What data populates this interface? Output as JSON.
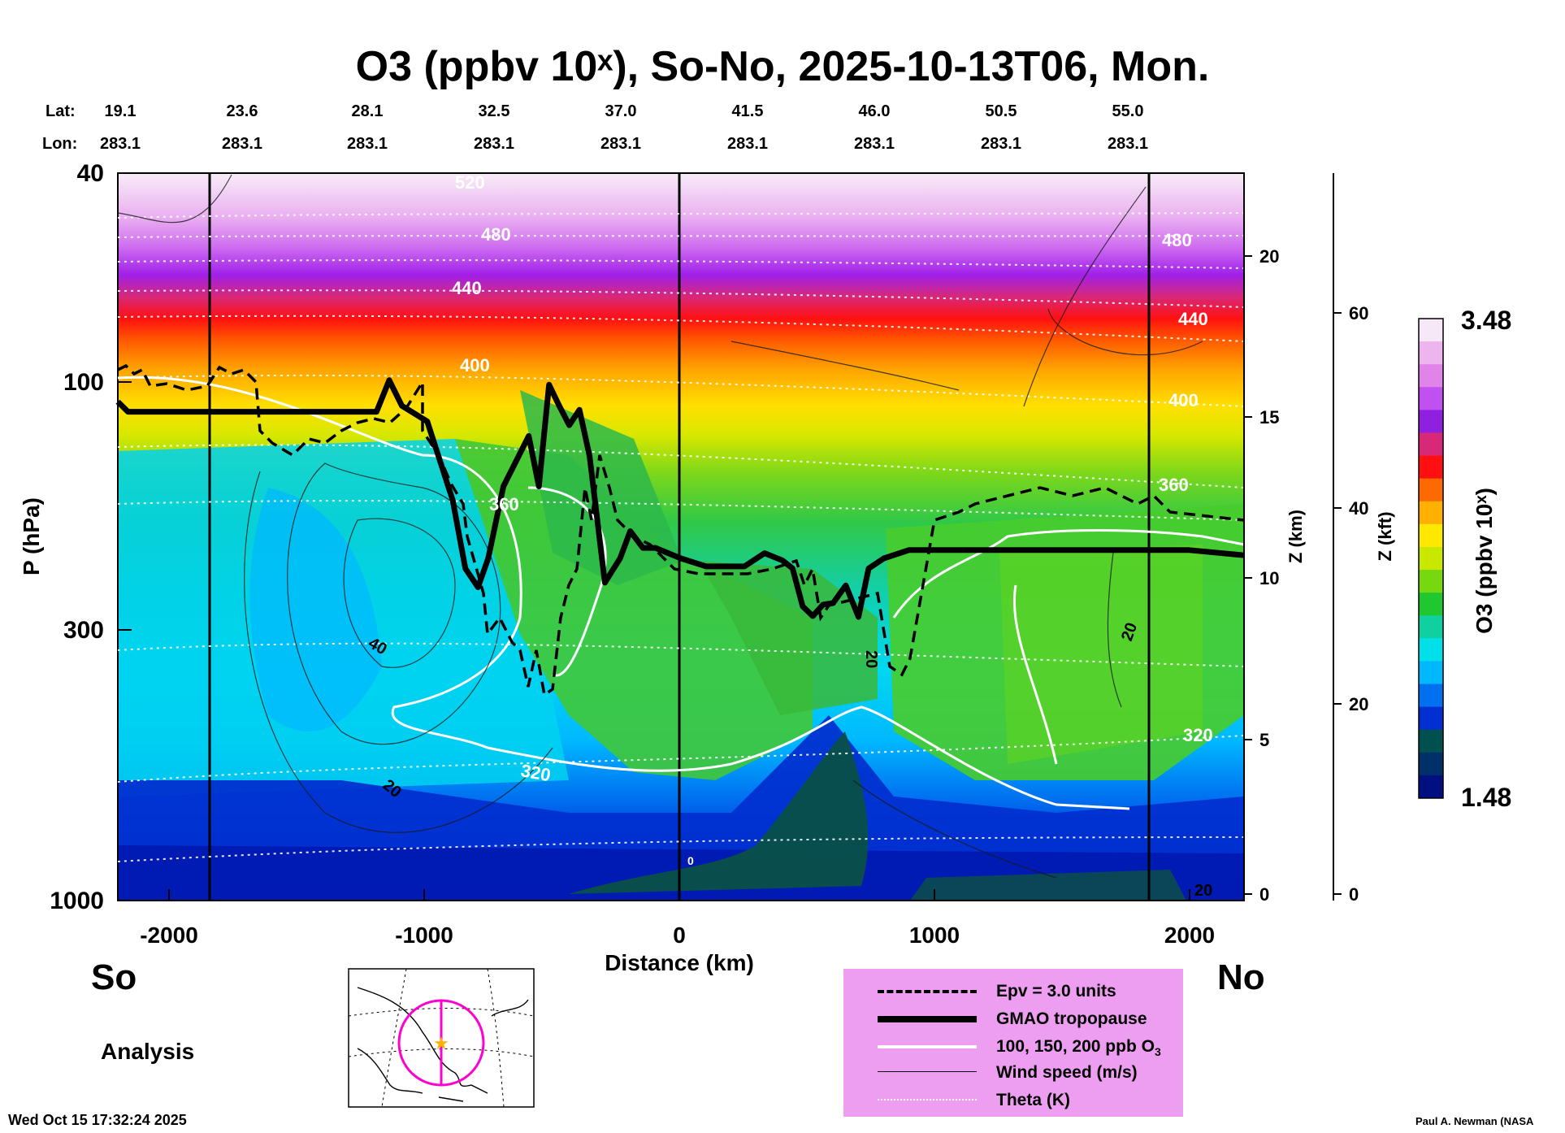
{
  "title": "O3 (ppbv 10ˣ), So-No, 2025-10-13T06, Mon.",
  "header": {
    "lat_label": "Lat:",
    "lon_label": "Lon:",
    "lat_values": [
      "19.1",
      "23.6",
      "28.1",
      "32.5",
      "37.0",
      "41.5",
      "46.0",
      "50.5",
      "55.0"
    ],
    "lon_values": [
      "283.1",
      "283.1",
      "283.1",
      "283.1",
      "283.1",
      "283.1",
      "283.1",
      "283.1",
      "283.1"
    ]
  },
  "axes": {
    "y_label": "P (hPa)",
    "y_ticks": [
      "40",
      "100",
      "300",
      "1000"
    ],
    "x_label": "Distance (km)",
    "x_ticks": [
      "-2000",
      "-1000",
      "0",
      "1000",
      "2000"
    ],
    "z_km_label": "Z (km)",
    "z_km_ticks": [
      "20",
      "15",
      "10",
      "5",
      "0"
    ],
    "z_kft_label": "Z (kft)",
    "z_kft_ticks": [
      "60",
      "40",
      "20",
      "0"
    ]
  },
  "colorbar": {
    "label": "O3 (ppbv 10ˣ)",
    "max": "3.48",
    "min": "1.48",
    "colors": [
      "#f6e8f6",
      "#eeb4ee",
      "#e084ea",
      "#c050f0",
      "#9020e0",
      "#d82878",
      "#ff1010",
      "#ff6a00",
      "#ffb000",
      "#ffe800",
      "#c8e800",
      "#78d810",
      "#20c830",
      "#10d0a0",
      "#00e0e8",
      "#00b8ff",
      "#0070f0",
      "#0030d0",
      "#005050",
      "#00306a",
      "#001080"
    ]
  },
  "contour_labels": {
    "theta": [
      "520",
      "480",
      "440",
      "400",
      "360",
      "320",
      "440",
      "400",
      "360",
      "320",
      "480"
    ],
    "wind": [
      "40",
      "20",
      "20",
      "20",
      "20",
      "0"
    ],
    "o3_inline": [
      "20"
    ]
  },
  "side_labels": {
    "south": "So",
    "north": "No",
    "analysis": "Analysis"
  },
  "legend": {
    "items": [
      {
        "label": "Epv = 3.0 units",
        "style": "dashed-black"
      },
      {
        "label": "GMAO tropopause",
        "style": "thick-black"
      },
      {
        "label": "100, 150, 200 ppb O",
        "sub": "3",
        "style": "white"
      },
      {
        "label": "Wind speed (m/s)",
        "style": "thin-black"
      },
      {
        "label": "Theta (K)",
        "style": "dotted-white"
      }
    ]
  },
  "footer": {
    "timestamp": "Wed Oct 15 17:32:24 2025",
    "credit": "Paul A. Newman (NASA"
  },
  "chart_data": {
    "type": "heatmap",
    "title": "O3 (ppbv 10ˣ), So-No, 2025-10-13T06, Mon.",
    "xlabel": "Distance (km)",
    "ylabel": "P (hPa)",
    "xlim": [
      -2220,
      2220
    ],
    "ylim": [
      1000,
      40
    ],
    "y_scale": "log",
    "color_scale": {
      "label": "O3 (ppbv 10ˣ)",
      "min": 1.48,
      "max": 3.48
    },
    "latitudes": [
      19.1,
      23.6,
      28.1,
      32.5,
      37.0,
      41.5,
      46.0,
      50.5,
      55.0
    ],
    "longitudes": [
      283.1,
      283.1,
      283.1,
      283.1,
      283.1,
      283.1,
      283.1,
      283.1,
      283.1
    ],
    "tropopause_hPa": {
      "x": [
        -2220,
        -2180,
        -1200,
        -1150,
        -1100,
        -1000,
        -900,
        -850,
        -800,
        -760,
        -700,
        -640,
        -600,
        -560,
        -520,
        -480,
        -440,
        -400,
        -360,
        -300,
        -240,
        -200,
        -150,
        -100,
        -50,
        0,
        100,
        250,
        330,
        400,
        440,
        480,
        520,
        560,
        600,
        650,
        700,
        740,
        800,
        900,
        1000,
        1500,
        2000,
        2220
      ],
      "y": [
        110,
        115,
        115,
        100,
        112,
        120,
        170,
        230,
        250,
        220,
        160,
        140,
        128,
        160,
        102,
        112,
        122,
        114,
        140,
        245,
        220,
        195,
        210,
        210,
        215,
        220,
        228,
        228,
        215,
        222,
        230,
        272,
        284,
        270,
        268,
        248,
        285,
        230,
        220,
        212,
        212,
        212,
        212,
        217
      ]
    },
    "theta_contours_K": [
      320,
      360,
      400,
      440,
      480,
      520
    ],
    "o3_contours_ppb": [
      100,
      150,
      200
    ],
    "epv_contour_units": 3.0
  }
}
